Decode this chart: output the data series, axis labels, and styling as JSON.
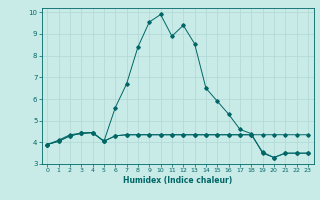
{
  "title": "",
  "xlabel": "Humidex (Indice chaleur)",
  "xlim": [
    -0.5,
    23.5
  ],
  "ylim": [
    3.0,
    10.2
  ],
  "yticks": [
    3,
    4,
    5,
    6,
    7,
    8,
    9,
    10
  ],
  "xticks": [
    0,
    1,
    2,
    3,
    4,
    5,
    6,
    7,
    8,
    9,
    10,
    11,
    12,
    13,
    14,
    15,
    16,
    17,
    18,
    19,
    20,
    21,
    22,
    23
  ],
  "background_color": "#c8ebe8",
  "grid_color": "#b0d8d4",
  "line_color": "#006666",
  "line1_x": [
    0,
    1,
    2,
    3,
    4,
    5,
    6,
    7,
    8,
    9,
    10,
    11,
    12,
    13,
    14,
    15,
    16,
    17,
    18,
    19,
    20,
    21,
    22,
    23
  ],
  "line1_y": [
    3.9,
    4.1,
    4.35,
    4.42,
    4.45,
    4.05,
    4.3,
    4.35,
    4.35,
    4.35,
    4.35,
    4.35,
    4.35,
    4.35,
    4.35,
    4.35,
    4.35,
    4.35,
    4.35,
    4.35,
    4.35,
    4.35,
    4.35,
    4.35
  ],
  "line2_x": [
    0,
    1,
    2,
    3,
    4,
    5,
    6,
    7,
    8,
    9,
    10,
    11,
    12,
    13,
    14,
    15,
    16,
    17,
    18,
    19,
    20,
    21,
    22,
    23
  ],
  "line2_y": [
    3.9,
    4.05,
    4.3,
    4.42,
    4.45,
    4.05,
    5.6,
    6.7,
    8.4,
    9.55,
    9.9,
    8.9,
    9.4,
    8.55,
    6.5,
    5.9,
    5.3,
    4.6,
    4.4,
    3.5,
    3.3,
    3.5,
    3.5,
    3.5
  ],
  "line3_x": [
    0,
    1,
    2,
    3,
    4,
    5,
    6,
    7,
    8,
    9,
    10,
    11,
    12,
    13,
    14,
    15,
    16,
    17,
    18,
    19,
    20,
    21,
    22,
    23
  ],
  "line3_y": [
    3.9,
    4.05,
    4.3,
    4.42,
    4.45,
    4.05,
    4.3,
    4.35,
    4.35,
    4.35,
    4.35,
    4.35,
    4.35,
    4.35,
    4.35,
    4.35,
    4.35,
    4.35,
    4.35,
    3.55,
    3.3,
    3.5,
    3.5,
    3.5
  ],
  "tick_fontsize": 4.5,
  "xlabel_fontsize": 5.5,
  "marker_size": 1.8,
  "linewidth": 0.7
}
